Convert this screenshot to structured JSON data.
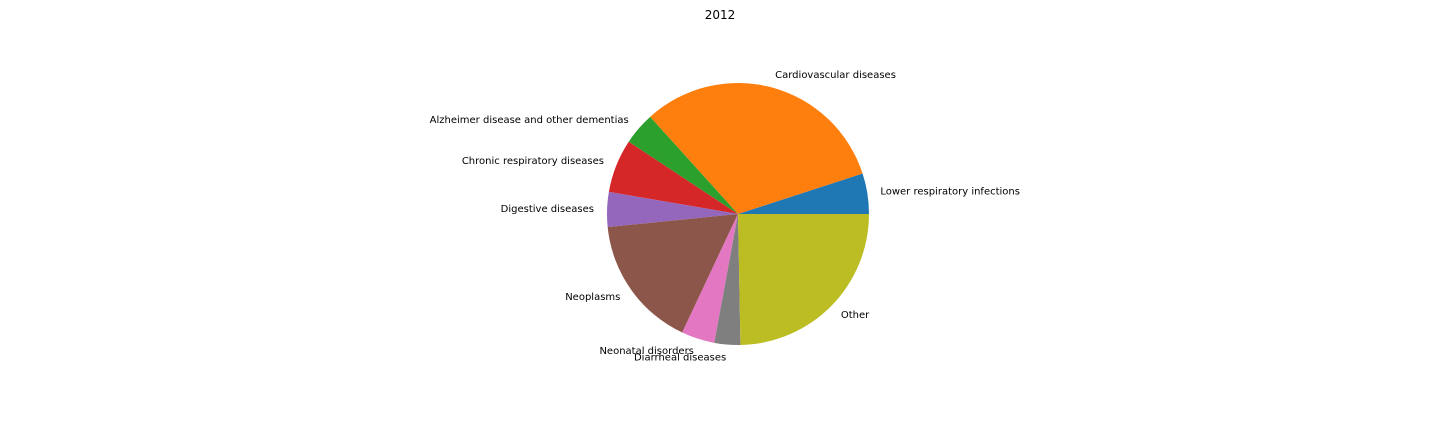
{
  "chart_data": {
    "type": "pie",
    "title": "2012",
    "start_angle_deg": 0,
    "direction": "counterclockwise",
    "slices": [
      {
        "label": "Lower respiratory infections",
        "value": 5.0,
        "color": "#1f77b4"
      },
      {
        "label": "Cardiovascular diseases",
        "value": 31.7,
        "color": "#ff7f0e"
      },
      {
        "label": "Alzheimer disease and other dementias",
        "value": 4.0,
        "color": "#2ca02c"
      },
      {
        "label": "Chronic respiratory diseases",
        "value": 6.6,
        "color": "#d62728"
      },
      {
        "label": "Digestive diseases",
        "value": 4.3,
        "color": "#9467bd"
      },
      {
        "label": "Neoplasms",
        "value": 16.4,
        "color": "#8c564b"
      },
      {
        "label": "Neonatal disorders",
        "value": 4.1,
        "color": "#e377c2"
      },
      {
        "label": "Diarrheal diseases",
        "value": 3.2,
        "color": "#7f7f7f"
      },
      {
        "label": "Other",
        "value": 24.7,
        "color": "#bcbd22"
      }
    ]
  }
}
